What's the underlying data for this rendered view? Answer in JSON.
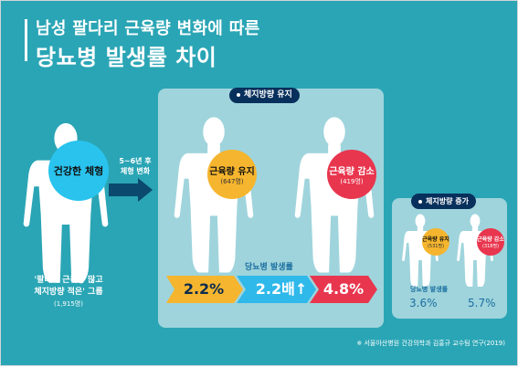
{
  "title": {
    "line1": "남성 팔다리 근육량 변화에 따른",
    "line2": "당뇨병 발생률 차이"
  },
  "left_group": {
    "circle_label": "건강한 체형",
    "group_line1": "'팔다리 근육량 많고",
    "group_line2": "체지방량 적은' 그룹",
    "group_count": "(1,915명)"
  },
  "transition": {
    "line1": "5~6년 후",
    "line2": "체형 변화"
  },
  "fat_maintain": {
    "tag": "체지방량 유지",
    "muscle_keep": {
      "label": "근육량 유지",
      "count": "(647명)"
    },
    "muscle_loss": {
      "label": "근육량 감소",
      "count": "(419명)"
    },
    "rate_label": "당뇨병 발생률",
    "rate_keep": "2.2%",
    "ratio": "2.2배↑",
    "rate_loss": "4.8%"
  },
  "fat_increase": {
    "tag": "체지방량 증가",
    "muscle_keep": {
      "label": "근육량 유지",
      "count": "(531명)"
    },
    "muscle_loss": {
      "label": "근육량 감소",
      "count": "(318명)"
    },
    "rate_label": "당뇨병 발생률",
    "rate_keep": "3.6%",
    "rate_loss": "5.7%"
  },
  "footer": "※ 서울아산병원 건강의학과 김홍규 교수팀 연구(2019)",
  "colors": {
    "background": "#2aa5b5",
    "panel": "#9fd4dc",
    "tag": "#08305c",
    "cyan_circle": "#29c3ee",
    "yellow_circle": "#f5b52e",
    "red_circle": "#e8364e",
    "arrow_yellow": "#f5b52e",
    "arrow_blue": "#2fb8ea",
    "arrow_red": "#e8364e",
    "silhouette": "#ffffff"
  }
}
